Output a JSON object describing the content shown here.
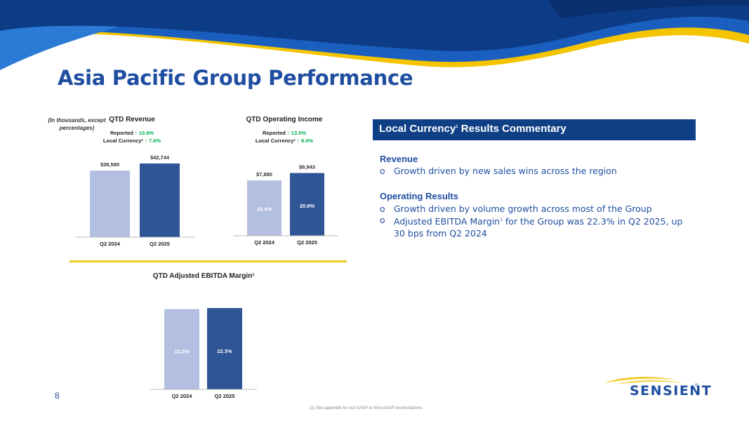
{
  "title": "Asia Pacific Group Performance",
  "note": "(In thousands, except percentages)",
  "commentary": {
    "header": "Local Currency",
    "header_sup": "1",
    "header_rest": " Results Commentary",
    "revenue_title": "Revenue",
    "revenue_bullet": "Growth driven by new sales wins across the region",
    "operating_title": "Operating Results",
    "op_bullet_1": "Growth driven by volume growth across most of the Group",
    "op_bullet_2_a": "Adjusted EBITDA Margin",
    "op_bullet_2_sup": "1",
    "op_bullet_2_b": " for the Group was 22.3% in Q2 2025, up 30 bps from Q2 2024",
    "bullet_marker": "o"
  },
  "page_number": "8",
  "footnote": "(1) See appendix for our GAAP to Non-GAAP reconciliations.",
  "logo": {
    "text": "SENSIENT",
    "tm": "®"
  },
  "colors": {
    "bar_light": "#b3bfe0",
    "bar_dark": "#2f5597",
    "up_green": "#00b050",
    "title_blue": "#1f4ea1",
    "accent_yellow": "#f2c81d"
  },
  "chart_data": [
    {
      "id": "rev",
      "type": "bar",
      "title": "QTD Revenue",
      "title_sup": "",
      "categories": [
        "Q2 2024",
        "Q2 2025"
      ],
      "values": [
        38580,
        42744
      ],
      "value_labels": [
        "$38,580",
        "$42,744"
      ],
      "inner_labels": [],
      "ylim": [
        0,
        48000
      ],
      "growth": [
        {
          "label": "Reported",
          "sup": "",
          "value": "10.8%"
        },
        {
          "label": "Local Currency",
          "sup": "1",
          "value": "7.6%"
        }
      ]
    },
    {
      "id": "opinc",
      "type": "bar",
      "title": "QTD Operating Income",
      "title_sup": "",
      "categories": [
        "Q2 2024",
        "Q2 2025"
      ],
      "values": [
        7880,
        8943
      ],
      "value_labels": [
        "$7,880",
        "$8,943"
      ],
      "inner_labels": [
        "20.4%",
        "20.9%"
      ],
      "ylim": [
        0,
        10000
      ],
      "growth": [
        {
          "label": "Reported",
          "sup": "",
          "value": "13.5%"
        },
        {
          "label": "Local Currency",
          "sup": "1",
          "value": "8.0%"
        }
      ]
    },
    {
      "id": "ebitda",
      "type": "bar",
      "title": "QTD Adjusted EBITDA Margin",
      "title_sup": "1",
      "categories": [
        "Q2 2024",
        "Q2 2025"
      ],
      "values": [
        22.0,
        22.3
      ],
      "value_labels": [],
      "inner_labels": [
        "22.0%",
        "22.3%"
      ],
      "ylim": [
        0,
        22.3
      ],
      "growth": []
    }
  ]
}
